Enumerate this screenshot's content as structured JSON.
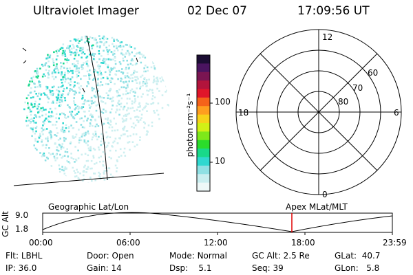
{
  "header": {
    "instrument": "Ultraviolet Imager",
    "date": "02 Dec 07",
    "time": "17:09:56 UT"
  },
  "colorbar": {
    "unit": "photon cm⁻²s⁻¹",
    "tick_labels": [
      "100",
      "10"
    ],
    "colors": [
      "#1b0d33",
      "#4a1460",
      "#7a1552",
      "#b3143c",
      "#e0152a",
      "#f5621a",
      "#ff9e1f",
      "#f7d21a",
      "#d2f016",
      "#7ee81a",
      "#2bdc2b",
      "#18d98a",
      "#2fd8d0",
      "#8fe0e4",
      "#c9eef0",
      "#eef8f8"
    ]
  },
  "polar": {
    "mlt_labels": {
      "top": "12",
      "left": "18",
      "right": "6",
      "bottom": "0"
    },
    "lat_labels": [
      "60",
      "70",
      "80"
    ]
  },
  "timeline": {
    "y_axis_title": "GC Alt",
    "y_ticks": [
      "9.0",
      "1.8"
    ],
    "left_title": "Geographic Lat/Lon",
    "right_title": "Apex MLat/MLT",
    "x_ticks": [
      "00:00",
      "06:00",
      "12:00",
      "18:00",
      "23:59"
    ],
    "marker_time": "17:09:56",
    "marker_color": "#e00000"
  },
  "footer": {
    "row1": [
      {
        "label": "Flt:",
        "value": "LBHL"
      },
      {
        "label": "Door:",
        "value": "Open"
      },
      {
        "label": "Mode:",
        "value": "Normal"
      },
      {
        "label": "GC Alt:",
        "value": "2.5 Re"
      },
      {
        "label": "GLat:",
        "value": "40.7"
      }
    ],
    "row2": [
      {
        "label": "IP:",
        "value": "36.0"
      },
      {
        "label": "Gain:",
        "value": "14"
      },
      {
        "label": "Dsp:",
        "value": "5.1"
      },
      {
        "label": "Seq:",
        "value": "39"
      },
      {
        "label": "GLon:",
        "value": "5.8"
      }
    ]
  }
}
